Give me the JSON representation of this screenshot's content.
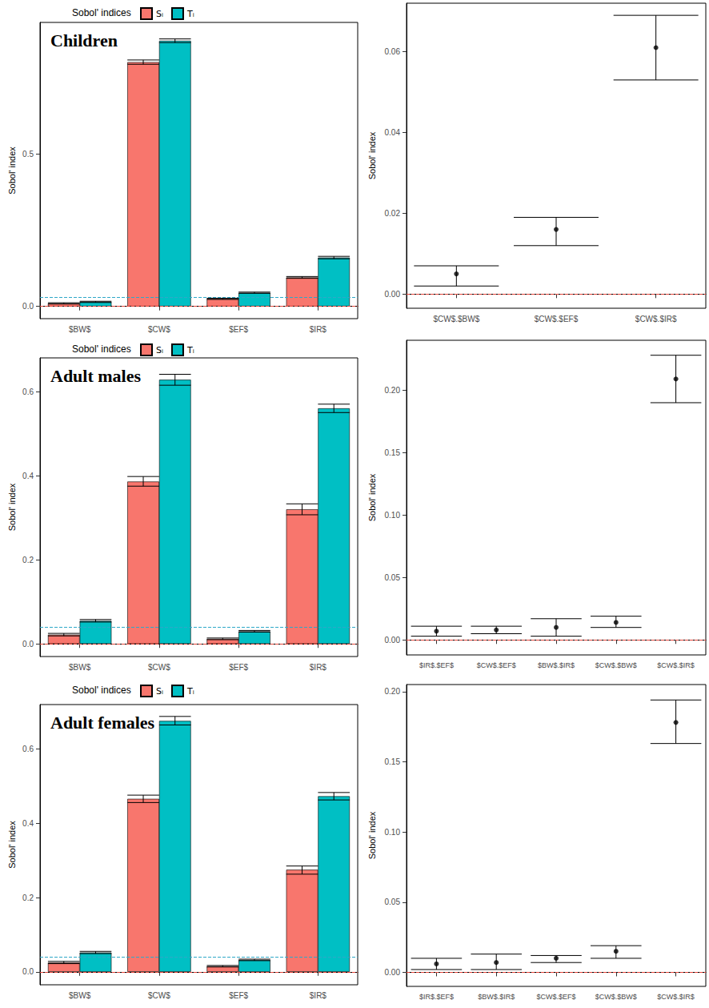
{
  "chart_data": [
    {
      "type": "bar",
      "title": "Children",
      "legend_title": "Sobol' indices",
      "legend": "top",
      "y_label": "Sobol' index",
      "categories": [
        "$BW$",
        "$CW$",
        "$EF$",
        "$IR$"
      ],
      "series": [
        {
          "name": "Sᵢ",
          "color": "#F8766D",
          "values": [
            0.01,
            0.8,
            0.025,
            0.095
          ],
          "ci_low": [
            0.008,
            0.793,
            0.023,
            0.092
          ],
          "ci_high": [
            0.012,
            0.807,
            0.027,
            0.098
          ]
        },
        {
          "name": "Tᵢ",
          "color": "#00BFC4",
          "values": [
            0.015,
            0.87,
            0.045,
            0.16
          ],
          "ci_low": [
            0.013,
            0.864,
            0.043,
            0.156
          ],
          "ci_high": [
            0.017,
            0.876,
            0.047,
            0.164
          ]
        }
      ],
      "ylim": [
        -0.04,
        0.93
      ],
      "yticks": [
        {
          "value": 0,
          "label": "0.0"
        },
        0.5
      ],
      "reference_lines": [
        {
          "value": 0,
          "color": "#E8473C",
          "line_style": "dashed"
        },
        {
          "value": 0.025,
          "color": "#2FA8C8",
          "line_style": "dashed"
        }
      ]
    },
    {
      "type": "scatter",
      "y_label": "Sobol' index",
      "color": "#000000",
      "categories": [
        "$CW$.$BW$",
        "$CW$.$EF$",
        "$CW$.$IR$"
      ],
      "values": [
        0.005,
        0.016,
        0.061
      ],
      "ci_low": [
        0.002,
        0.012,
        0.053
      ],
      "ci_high": [
        0.007,
        0.019,
        0.069
      ],
      "ylim": [
        -0.0035,
        0.072
      ],
      "yticks": [
        {
          "value": 0,
          "label": "0.00"
        },
        0.02,
        0.04,
        0.06
      ],
      "reference_lines": [
        {
          "value": 0,
          "color": "#E8473C",
          "line_style": "dashed"
        }
      ]
    },
    {
      "type": "bar",
      "title": "Adult males",
      "legend_title": "Sobol' indices",
      "legend": "top",
      "y_label": "Sobol' index",
      "categories": [
        "$BW$",
        "$CW$",
        "$EF$",
        "$IR$"
      ],
      "series": [
        {
          "name": "Sᵢ",
          "color": "#F8766D",
          "values": [
            0.022,
            0.386,
            0.012,
            0.32
          ],
          "ci_low": [
            0.019,
            0.375,
            0.01,
            0.307
          ],
          "ci_high": [
            0.025,
            0.398,
            0.014,
            0.333
          ]
        },
        {
          "name": "Tᵢ",
          "color": "#00BFC4",
          "values": [
            0.055,
            0.628,
            0.03,
            0.56
          ],
          "ci_low": [
            0.052,
            0.615,
            0.028,
            0.55
          ],
          "ci_high": [
            0.058,
            0.641,
            0.032,
            0.57
          ]
        }
      ],
      "ylim": [
        -0.03,
        0.68
      ],
      "yticks": [
        {
          "value": 0,
          "label": "0.0"
        },
        0.2,
        0.4,
        0.6
      ],
      "reference_lines": [
        {
          "value": 0,
          "color": "#E8473C",
          "line_style": "dashed"
        },
        {
          "value": 0.04,
          "color": "#2FA8C8",
          "line_style": "dashed"
        }
      ]
    },
    {
      "type": "scatter",
      "y_label": "Sobol' index",
      "color": "#000000",
      "categories": [
        "$IR$.$EF$",
        "$CW$.$EF$",
        "$BW$.$IR$",
        "$CW$.$BW$",
        "$CW$.$IR$"
      ],
      "values": [
        0.007,
        0.008,
        0.01,
        0.014,
        0.209
      ],
      "ci_low": [
        0.003,
        0.005,
        0.003,
        0.01,
        0.19
      ],
      "ci_high": [
        0.011,
        0.011,
        0.017,
        0.019,
        0.228
      ],
      "ylim": [
        -0.012,
        0.24
      ],
      "yticks": [
        {
          "value": 0,
          "label": "0.00"
        },
        0.05,
        {
          "value": 0.1,
          "label": "0.10"
        },
        0.15,
        {
          "value": 0.2,
          "label": "0.20"
        }
      ],
      "reference_lines": [
        {
          "value": 0,
          "color": "#E8473C",
          "line_style": "dashed"
        }
      ]
    },
    {
      "type": "bar",
      "title": "Adult females",
      "legend_title": "Sobol' indices",
      "legend": "top",
      "y_label": "Sobol' index",
      "categories": [
        "$BW$",
        "$CW$",
        "$EF$",
        "$IR$"
      ],
      "series": [
        {
          "name": "Sᵢ",
          "color": "#F8766D",
          "values": [
            0.025,
            0.466,
            0.015,
            0.275
          ],
          "ci_low": [
            0.022,
            0.456,
            0.013,
            0.263
          ],
          "ci_high": [
            0.028,
            0.476,
            0.017,
            0.285
          ]
        },
        {
          "name": "Tᵢ",
          "color": "#00BFC4",
          "values": [
            0.052,
            0.676,
            0.032,
            0.473
          ],
          "ci_low": [
            0.049,
            0.665,
            0.03,
            0.463
          ],
          "ci_high": [
            0.055,
            0.688,
            0.034,
            0.483
          ]
        }
      ],
      "ylim": [
        -0.035,
        0.72
      ],
      "yticks": [
        {
          "value": 0,
          "label": "0.0"
        },
        0.2,
        0.4,
        0.6
      ],
      "reference_lines": [
        {
          "value": 0,
          "color": "#E8473C",
          "line_style": "dashed"
        },
        {
          "value": 0.035,
          "color": "#2FA8C8",
          "line_style": "dashed"
        }
      ]
    },
    {
      "type": "scatter",
      "y_label": "Sobol' index",
      "color": "#000000",
      "categories": [
        "$IR$.$EF$",
        "$BW$.$IR$",
        "$CW$.$EF$",
        "$CW$.$BW$",
        "$CW$.$IR$"
      ],
      "values": [
        0.006,
        0.007,
        0.01,
        0.015,
        0.178
      ],
      "ci_low": [
        0.002,
        0.002,
        0.007,
        0.01,
        0.163
      ],
      "ci_high": [
        0.01,
        0.013,
        0.012,
        0.019,
        0.194
      ],
      "ylim": [
        -0.01,
        0.205
      ],
      "yticks": [
        {
          "value": 0,
          "label": "0.00"
        },
        0.05,
        {
          "value": 0.1,
          "label": "0.10"
        },
        0.15,
        {
          "value": 0.2,
          "label": "0.20"
        }
      ],
      "reference_lines": [
        {
          "value": 0,
          "color": "#E8473C",
          "line_style": "dashed"
        }
      ]
    }
  ]
}
